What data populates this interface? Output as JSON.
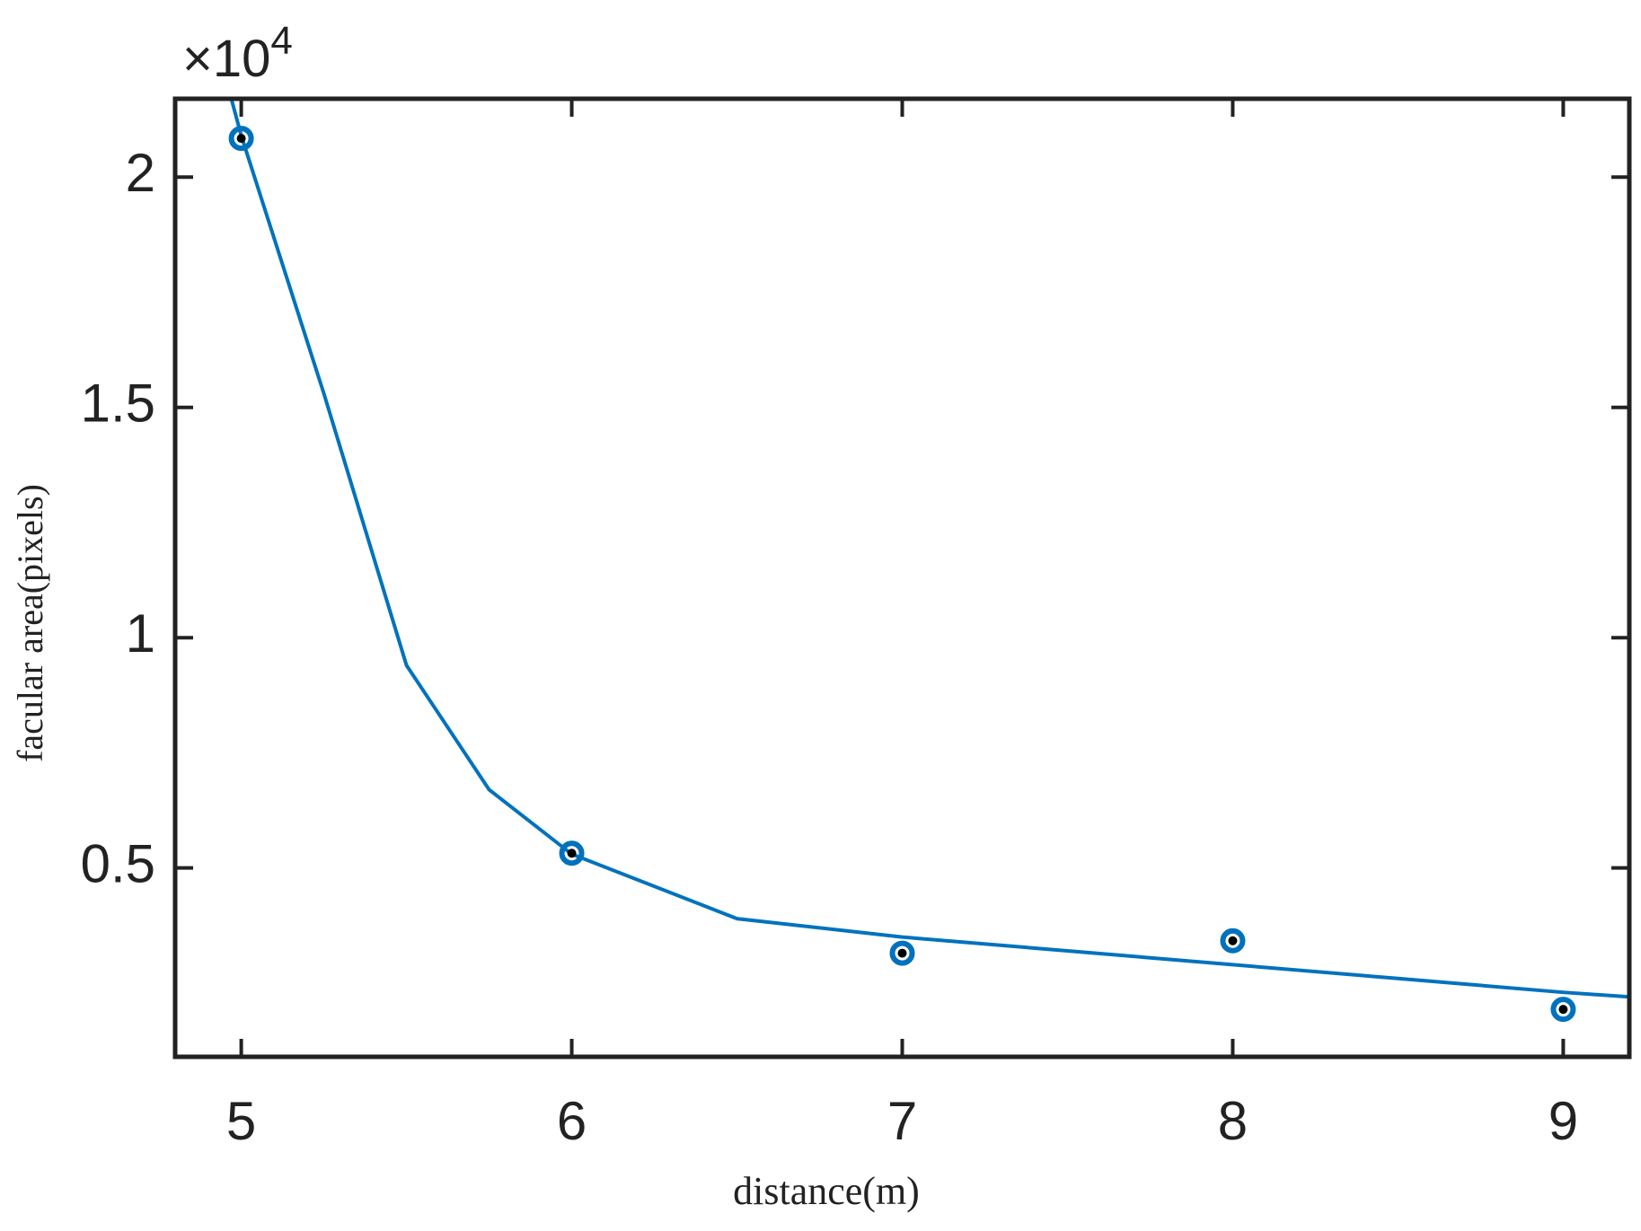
{
  "chart_data": {
    "type": "scatter",
    "x_label": "distance(m)",
    "y_label": "facular area(pixels)",
    "y_multiplier": {
      "base": "×10",
      "exponent": "4"
    },
    "xlim": [
      4.8,
      9.2
    ],
    "xticks": [
      5,
      6,
      7,
      8,
      9
    ],
    "ylim": [
      0.09,
      2.17
    ],
    "yticks": [
      0.5,
      1,
      1.5,
      2
    ],
    "series": [
      {
        "type": "scatter",
        "color": "#0072bd",
        "center_color": "#000000",
        "x": [
          5,
          6,
          7,
          8,
          9
        ],
        "values": [
          2.084,
          0.532,
          0.315,
          0.342,
          0.193
        ]
      },
      {
        "type": "line",
        "color": "#0072bd",
        "x": [
          4.97,
          5,
          5.25,
          5.5,
          5.75,
          6,
          6.5,
          7,
          7.5,
          8,
          8.5,
          9,
          9.2
        ],
        "values": [
          2.17,
          2.09,
          1.53,
          0.94,
          0.67,
          0.53,
          0.39,
          0.35,
          0.32,
          0.29,
          0.26,
          0.23,
          0.22
        ]
      }
    ]
  }
}
